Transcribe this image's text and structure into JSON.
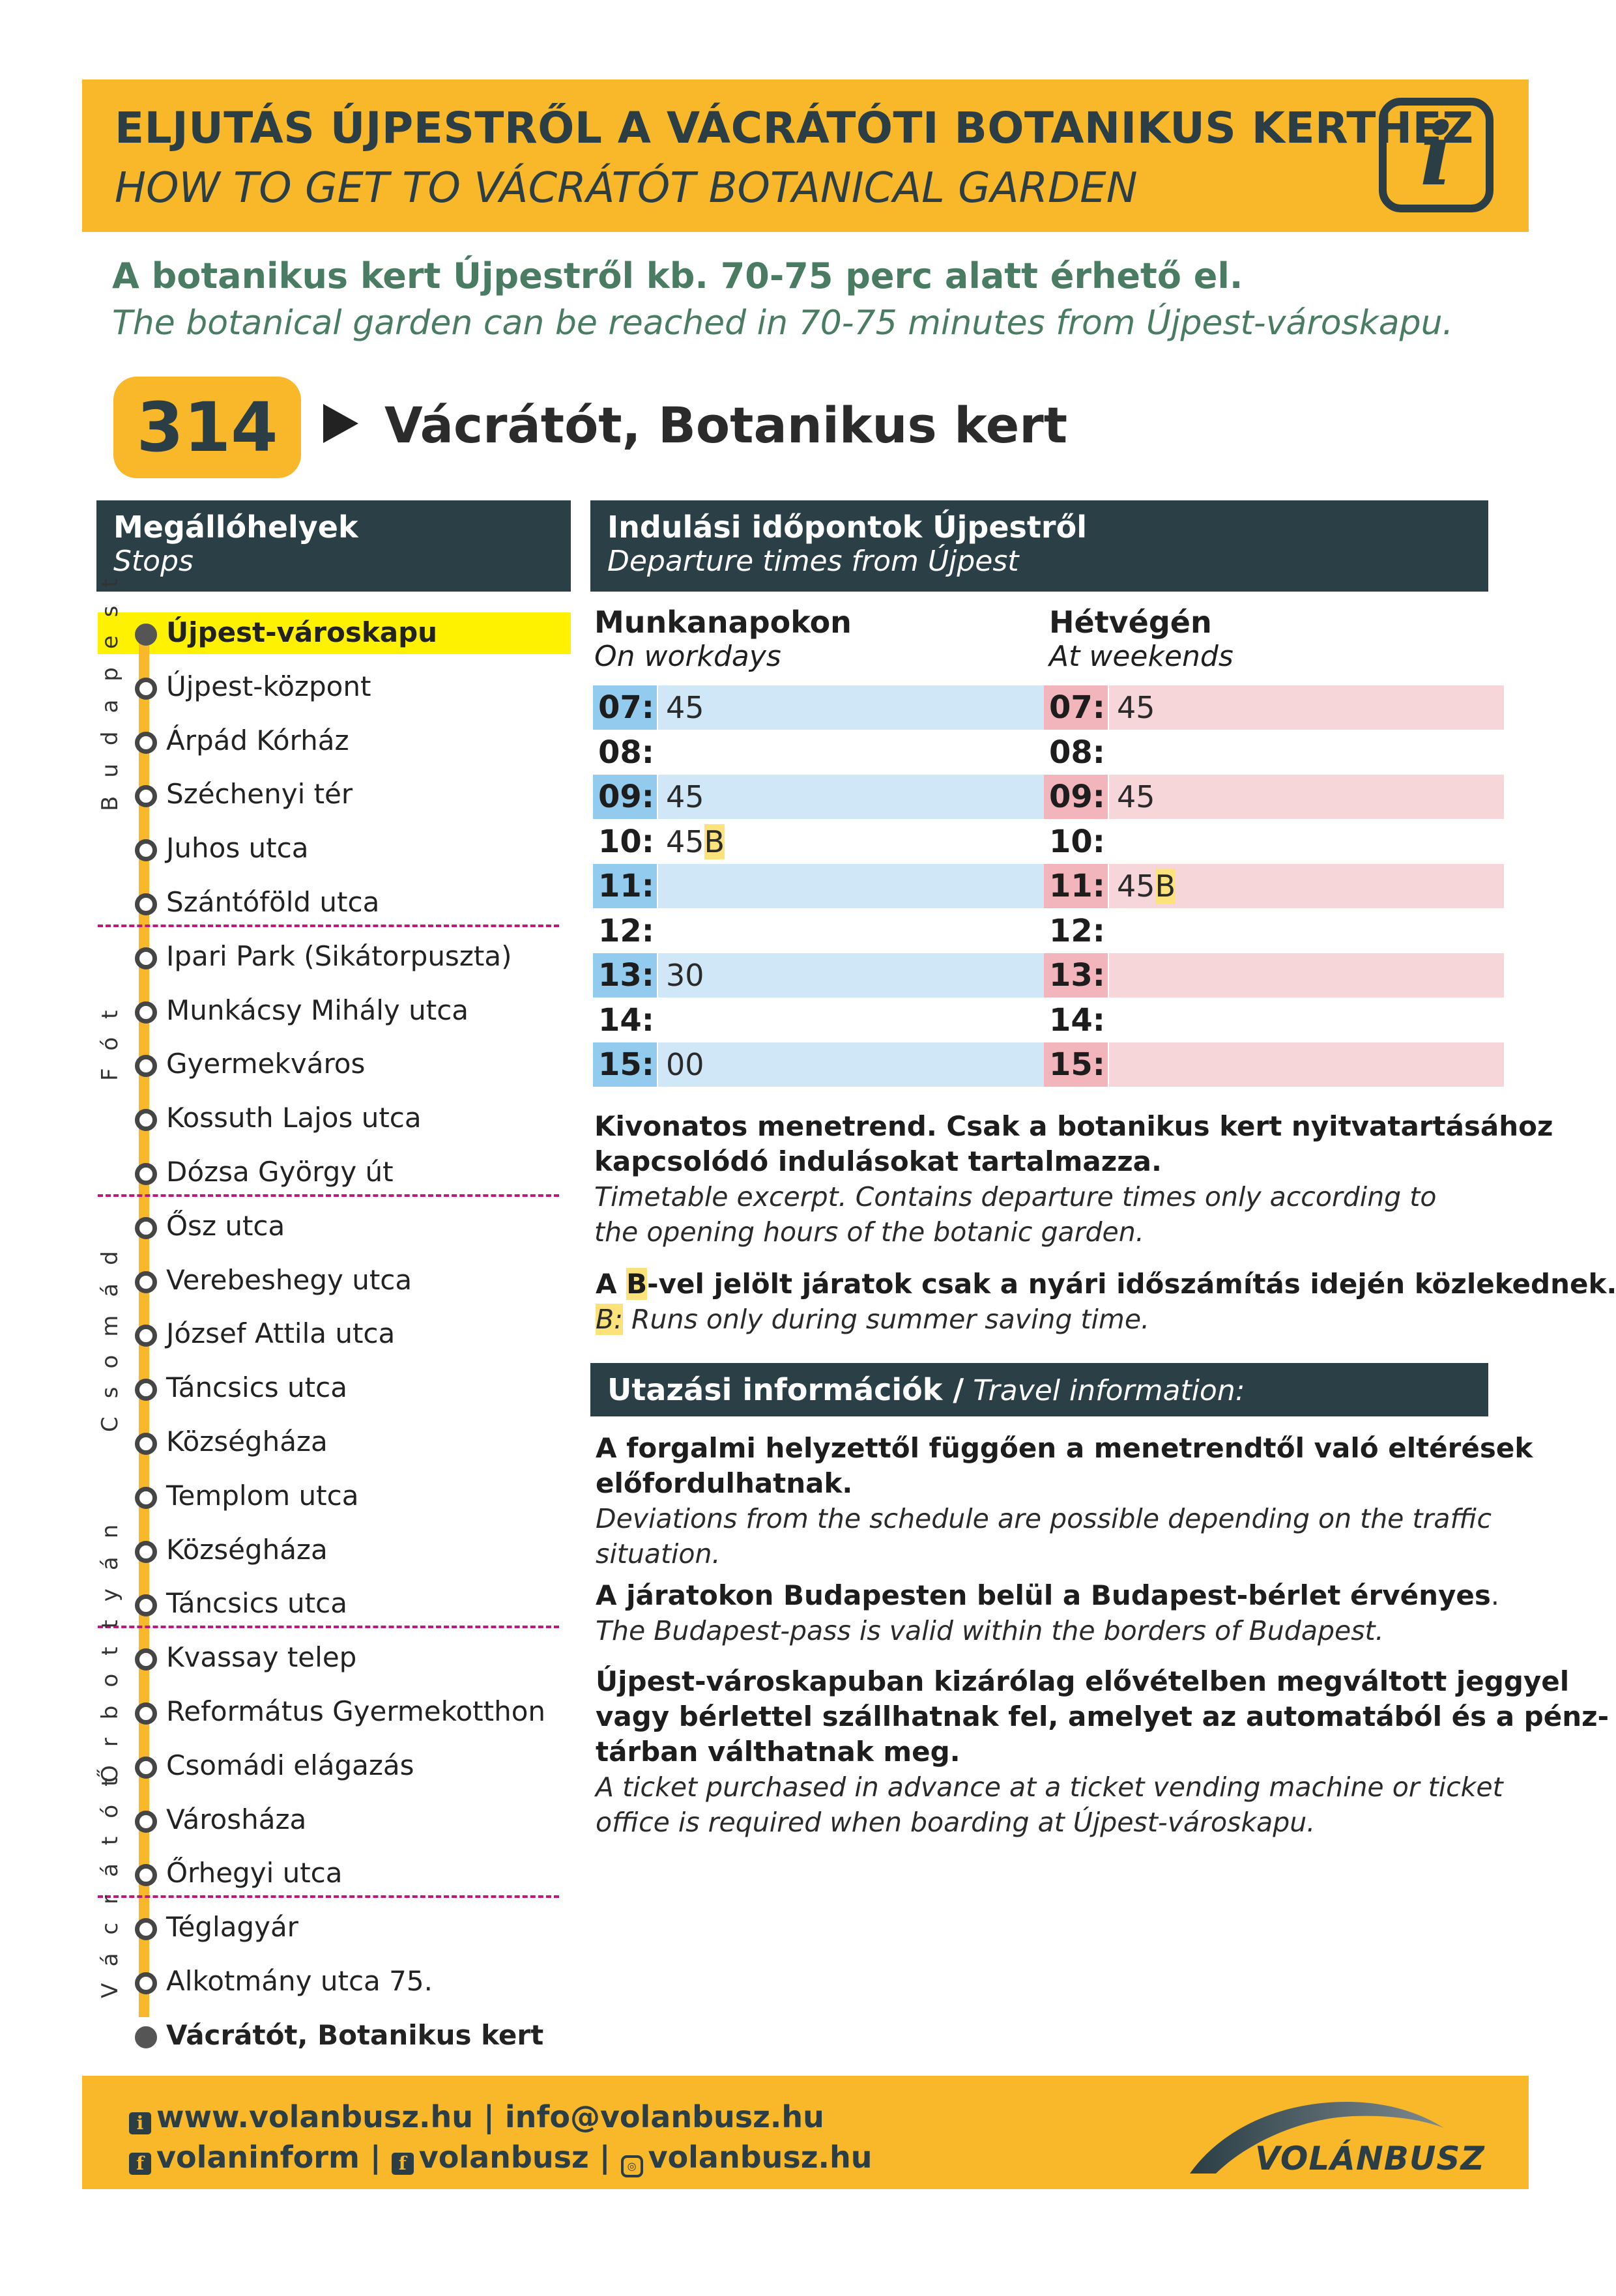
{
  "header": {
    "title_hu": "ELJUTÁS ÚJPESTRŐL A VÁCRÁTÓTI BOTANIKUS KERTHEZ",
    "title_en": "HOW TO GET TO VÁCRÁTÓT BOTANICAL GARDEN",
    "info_icon_glyph": "i"
  },
  "intro": {
    "hu": "A botanikus kert Újpestről kb. 70-75 perc alatt érhető el.",
    "en": "The botanical garden can be reached in 70-75 minutes from Újpest-városkapu."
  },
  "route": {
    "number": "314",
    "destination": "Vácrátót, Botanikus kert"
  },
  "stops_panel": {
    "title_hu": "Megállóhelyek",
    "title_en": "Stops",
    "zones": [
      "Budapest",
      "Fót",
      "Csomád",
      "Őrbottyán",
      "Vácrátót"
    ],
    "stops": [
      "Újpest-városkapu",
      "Újpest-központ",
      "Árpád Kórház",
      "Széchenyi tér",
      "Juhos utca",
      "Szántóföld utca",
      "Ipari Park (Sikátorpuszta)",
      "Munkácsy Mihály utca",
      "Gyermekváros",
      "Kossuth Lajos utca",
      "Dózsa György út",
      "Ősz utca",
      "Verebeshegy utca",
      "József Attila utca",
      "Táncsics utca",
      "Községháza",
      "Templom utca",
      "Községháza",
      "Táncsics utca",
      "Kvassay telep",
      "Református Gyermekotthon",
      "Csomádi elágazás",
      "Városháza",
      "Őrhegyi utca",
      "Téglagyár",
      "Alkotmány utca 75.",
      "Vácrátót, Botanikus kert"
    ]
  },
  "departures": {
    "title_hu": "Indulási időpontok Újpestről",
    "title_en": "Departure times from Újpest",
    "workdays": {
      "label_hu": "Munkanapokon",
      "label_en": "On workdays",
      "rows": [
        {
          "hour": "07:",
          "min": "45",
          "b": ""
        },
        {
          "hour": "08:",
          "min": "",
          "b": ""
        },
        {
          "hour": "09:",
          "min": "45",
          "b": ""
        },
        {
          "hour": "10:",
          "min": "45",
          "b": "B"
        },
        {
          "hour": "11:",
          "min": "",
          "b": ""
        },
        {
          "hour": "12:",
          "min": "",
          "b": ""
        },
        {
          "hour": "13:",
          "min": "30",
          "b": ""
        },
        {
          "hour": "14:",
          "min": "",
          "b": ""
        },
        {
          "hour": "15:",
          "min": "00",
          "b": ""
        }
      ]
    },
    "weekends": {
      "label_hu": "Hétvégén",
      "label_en": "At weekends",
      "rows": [
        {
          "hour": "07:",
          "min": "45",
          "b": ""
        },
        {
          "hour": "08:",
          "min": "",
          "b": ""
        },
        {
          "hour": "09:",
          "min": "45",
          "b": ""
        },
        {
          "hour": "10:",
          "min": "",
          "b": ""
        },
        {
          "hour": "11:",
          "min": "45",
          "b": "B"
        },
        {
          "hour": "12:",
          "min": "",
          "b": ""
        },
        {
          "hour": "13:",
          "min": "",
          "b": ""
        },
        {
          "hour": "14:",
          "min": "",
          "b": ""
        },
        {
          "hour": "15:",
          "min": "",
          "b": ""
        }
      ]
    }
  },
  "notes": {
    "excerpt_hu_1": "Kivonatos menetrend. Csak a botanikus kert nyitvatartásához",
    "excerpt_hu_2": "kapcsolódó indulásokat tartalmazza.",
    "excerpt_en_1": "Timetable excerpt. Contains departure times only according to",
    "excerpt_en_2": "the opening hours of the botanic garden.",
    "b_hu_pre": "A ",
    "b_letter": "B",
    "b_hu_post": "-vel jelölt járatok csak a nyári időszámítás idején közlekednek.",
    "b_en_letter": "B:",
    "b_en_post": " Runs only during summer saving time."
  },
  "travel_info": {
    "title_hu": "Utazási információk /",
    "title_en": " Travel information:",
    "p1_hu_1": "A forgalmi helyzettől függően a menetrendtől való eltérések",
    "p1_hu_2": "előfordulhatnak.",
    "p1_en_1": "Deviations from the schedule are possible depending on the traffic",
    "p1_en_2": "situation.",
    "p2_hu": "A járatokon Budapesten belül a Budapest-bérlet érvényes",
    "p2_hu_dot": ".",
    "p2_en": "The Budapest-pass is valid within the borders of Budapest.",
    "p3_hu_1": "Újpest-városkapuban kizárólag elővételben megváltott jeggyel",
    "p3_hu_2": "vagy bérlettel szállhatnak fel, amelyet az automatából és a pénz-",
    "p3_hu_3": "tárban válthatnak meg.",
    "p3_en_1": "A ticket purchased in advance at a ticket vending machine or ticket",
    "p3_en_2": "office is required when boarding at Újpest-városkapu."
  },
  "footer": {
    "web": "www.volanbusz.hu",
    "sep1": " | ",
    "email": "info@volanbusz.hu",
    "fb1": "volaninform",
    "sep2": " | ",
    "fb2": "volanbusz",
    "sep3": " | ",
    "insta": "volanbusz.hu",
    "icon_info": "i",
    "icon_fb": "f",
    "icon_insta": "◎",
    "logo_text": "VOLÁNBUSZ"
  },
  "colors": {
    "brand_yellow": "#f8b829",
    "dark_teal": "#2a3f46",
    "intro_green": "#4a7c63",
    "zone_separator": "#c0177a",
    "workday_light": "#cfe7f7",
    "weekend_light": "#f7d6da",
    "origin_highlight": "#fff200"
  }
}
